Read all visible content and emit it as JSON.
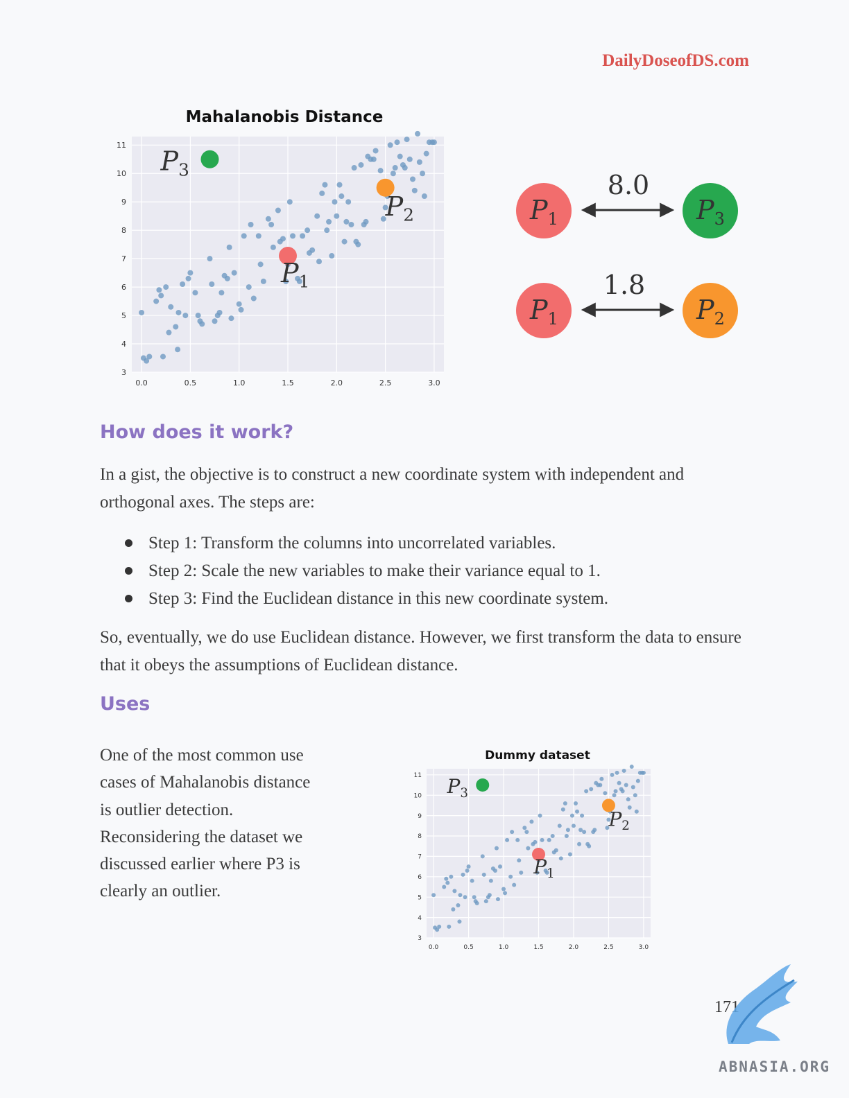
{
  "header": {
    "site": "DailyDoseofDS.com"
  },
  "figure1": {
    "chart_data": {
      "type": "scatter",
      "title": "Mahalanobis Distance",
      "xlabel": "",
      "ylabel": "",
      "xlim": [
        -0.1,
        3.1
      ],
      "ylim": [
        3,
        11.3
      ],
      "xticks": [
        "0.0",
        "0.5",
        "1.0",
        "1.5",
        "2.0",
        "2.5",
        "3.0"
      ],
      "yticks": [
        "3",
        "4",
        "5",
        "6",
        "7",
        "8",
        "9",
        "10",
        "11"
      ],
      "grid": true,
      "series": [
        {
          "color": "#6f9ac2",
          "points": [
            [
              0.0,
              5.1
            ],
            [
              0.02,
              3.5
            ],
            [
              0.05,
              3.4
            ],
            [
              0.08,
              3.55
            ],
            [
              0.15,
              5.5
            ],
            [
              0.18,
              5.9
            ],
            [
              0.2,
              5.7
            ],
            [
              0.22,
              3.55
            ],
            [
              0.25,
              6.0
            ],
            [
              0.28,
              4.4
            ],
            [
              0.3,
              5.3
            ],
            [
              0.35,
              4.6
            ],
            [
              0.37,
              3.8
            ],
            [
              0.38,
              5.1
            ],
            [
              0.42,
              6.1
            ],
            [
              0.45,
              5.0
            ],
            [
              0.48,
              6.3
            ],
            [
              0.5,
              6.5
            ],
            [
              0.55,
              5.8
            ],
            [
              0.58,
              5.0
            ],
            [
              0.6,
              4.8
            ],
            [
              0.62,
              4.7
            ],
            [
              0.7,
              7.0
            ],
            [
              0.72,
              6.1
            ],
            [
              0.75,
              4.8
            ],
            [
              0.78,
              5.0
            ],
            [
              0.8,
              5.1
            ],
            [
              0.82,
              5.8
            ],
            [
              0.85,
              6.4
            ],
            [
              0.88,
              6.3
            ],
            [
              0.9,
              7.4
            ],
            [
              0.92,
              4.9
            ],
            [
              0.95,
              6.5
            ],
            [
              1.0,
              5.4
            ],
            [
              1.02,
              5.2
            ],
            [
              1.05,
              7.8
            ],
            [
              1.1,
              6.0
            ],
            [
              1.12,
              8.2
            ],
            [
              1.15,
              5.6
            ],
            [
              1.2,
              7.8
            ],
            [
              1.22,
              6.8
            ],
            [
              1.25,
              6.2
            ],
            [
              1.3,
              8.4
            ],
            [
              1.33,
              8.2
            ],
            [
              1.35,
              7.4
            ],
            [
              1.4,
              8.7
            ],
            [
              1.42,
              7.6
            ],
            [
              1.45,
              7.7
            ],
            [
              1.48,
              6.2
            ],
            [
              1.5,
              6.8
            ],
            [
              1.52,
              9.0
            ],
            [
              1.55,
              7.8
            ],
            [
              1.6,
              6.3
            ],
            [
              1.62,
              6.2
            ],
            [
              1.65,
              7.8
            ],
            [
              1.7,
              8.0
            ],
            [
              1.72,
              7.2
            ],
            [
              1.75,
              7.3
            ],
            [
              1.8,
              8.5
            ],
            [
              1.82,
              6.9
            ],
            [
              1.85,
              9.3
            ],
            [
              1.88,
              9.6
            ],
            [
              1.9,
              8.0
            ],
            [
              1.92,
              8.3
            ],
            [
              1.95,
              7.1
            ],
            [
              1.98,
              9.0
            ],
            [
              2.0,
              8.5
            ],
            [
              2.03,
              9.6
            ],
            [
              2.05,
              9.2
            ],
            [
              2.08,
              7.6
            ],
            [
              2.1,
              8.3
            ],
            [
              2.12,
              9.0
            ],
            [
              2.15,
              8.2
            ],
            [
              2.18,
              10.2
            ],
            [
              2.2,
              7.6
            ],
            [
              2.22,
              7.5
            ],
            [
              2.25,
              10.3
            ],
            [
              2.28,
              8.2
            ],
            [
              2.3,
              8.3
            ],
            [
              2.32,
              10.6
            ],
            [
              2.35,
              10.5
            ],
            [
              2.38,
              10.5
            ],
            [
              2.4,
              10.8
            ],
            [
              2.45,
              10.1
            ],
            [
              2.48,
              8.4
            ],
            [
              2.5,
              8.8
            ],
            [
              2.52,
              9.2
            ],
            [
              2.55,
              11.0
            ],
            [
              2.58,
              10.0
            ],
            [
              2.6,
              10.2
            ],
            [
              2.62,
              11.1
            ],
            [
              2.65,
              10.6
            ],
            [
              2.68,
              10.3
            ],
            [
              2.7,
              10.2
            ],
            [
              2.72,
              11.2
            ],
            [
              2.75,
              10.5
            ],
            [
              2.78,
              9.8
            ],
            [
              2.8,
              9.4
            ],
            [
              2.83,
              11.4
            ],
            [
              2.85,
              10.4
            ],
            [
              2.88,
              10.0
            ],
            [
              2.9,
              9.2
            ],
            [
              2.92,
              10.7
            ],
            [
              2.95,
              11.1
            ],
            [
              2.98,
              11.1
            ],
            [
              3.0,
              11.1
            ]
          ]
        }
      ],
      "highlights": [
        {
          "label": "P",
          "sub": "1",
          "x": 1.5,
          "y": 7.1,
          "color": "#f26d6d"
        },
        {
          "label": "P",
          "sub": "2",
          "x": 2.5,
          "y": 9.5,
          "color": "#f8962e"
        },
        {
          "label": "P",
          "sub": "3",
          "x": 0.7,
          "y": 10.5,
          "color": "#27a84f"
        }
      ]
    }
  },
  "distances": [
    {
      "from": "1",
      "to": "3",
      "value": "8.0",
      "from_color": "#f26d6d",
      "to_color": "#27a84f"
    },
    {
      "from": "1",
      "to": "2",
      "value": "1.8",
      "from_color": "#f26d6d",
      "to_color": "#f8962e"
    }
  ],
  "section1": {
    "heading": "How does it work?",
    "intro": "In a gist, the objective is to construct a new coordinate system with independent and orthogonal axes. The steps are:",
    "steps": [
      "Step 1: Transform the columns into uncorrelated variables.",
      "Step 2: Scale the new variables to make their variance equal to 1.",
      "Step 3: Find the Euclidean distance in this new coordinate system."
    ],
    "outro": "So, eventually, we do use Euclidean distance. However, we first transform the data to ensure that it obeys the assumptions of Euclidean distance."
  },
  "section2": {
    "heading": "Uses",
    "body": "One of the most common use cases of Mahalanobis distance is outlier detection. Reconsidering the dataset we discussed earlier where P3 is clearly an outlier."
  },
  "figure2": {
    "chart_data": {
      "type": "scatter",
      "title": "Dummy dataset",
      "xlabel": "",
      "ylabel": "",
      "xlim": [
        -0.1,
        3.1
      ],
      "ylim": [
        3,
        11.3
      ],
      "xticks": [
        "0.0",
        "0.5",
        "1.0",
        "1.5",
        "2.0",
        "2.5",
        "3.0"
      ],
      "yticks": [
        "3",
        "4",
        "5",
        "6",
        "7",
        "8",
        "9",
        "10",
        "11"
      ],
      "grid": true,
      "same_points_as": "figure1",
      "highlights": [
        {
          "label": "P",
          "sub": "1",
          "x": 1.5,
          "y": 7.1,
          "color": "#f26d6d"
        },
        {
          "label": "P",
          "sub": "2",
          "x": 2.5,
          "y": 9.5,
          "color": "#f8962e"
        },
        {
          "label": "P",
          "sub": "3",
          "x": 0.7,
          "y": 10.5,
          "color": "#27a84f"
        }
      ]
    }
  },
  "footer": {
    "page_number": "171",
    "logo_text": "ABNASIA.ORG"
  }
}
